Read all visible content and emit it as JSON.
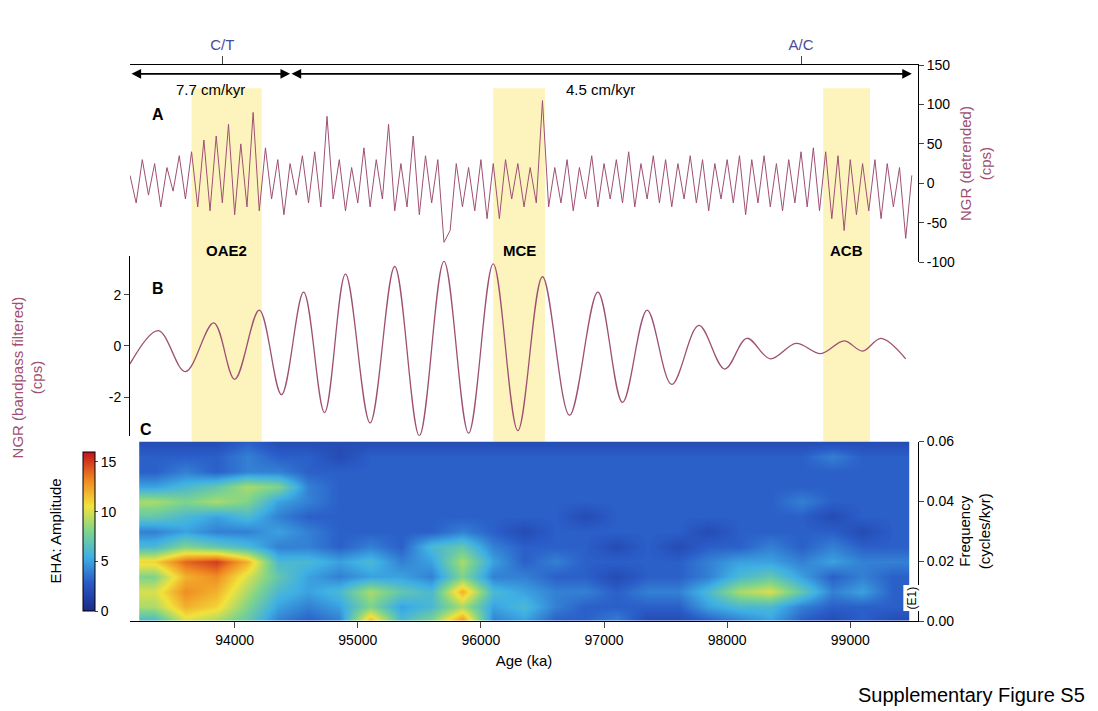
{
  "chart_data": [
    {
      "type": "line",
      "label": "A",
      "color": "#9e5073",
      "ylabel": "NGR (detrended) (cps)",
      "ylim": [
        -100,
        150
      ],
      "yticks": [
        -100,
        -50,
        0,
        50,
        100,
        150
      ],
      "x": [
        93150,
        93200,
        93250,
        93300,
        93350,
        93400,
        93450,
        93500,
        93550,
        93600,
        93650,
        93700,
        93750,
        93800,
        93850,
        93900,
        93950,
        94000,
        94050,
        94100,
        94150,
        94200,
        94250,
        94300,
        94350,
        94400,
        94450,
        94500,
        94550,
        94600,
        94650,
        94700,
        94750,
        94800,
        94850,
        94900,
        94950,
        95000,
        95050,
        95100,
        95150,
        95200,
        95250,
        95300,
        95350,
        95400,
        95450,
        95500,
        95550,
        95600,
        95650,
        95700,
        95750,
        95800,
        95850,
        95900,
        95950,
        96000,
        96050,
        96100,
        96150,
        96200,
        96250,
        96300,
        96350,
        96400,
        96450,
        96500,
        96550,
        96600,
        96650,
        96700,
        96750,
        96800,
        96850,
        96900,
        96950,
        97000,
        97050,
        97100,
        97150,
        97200,
        97250,
        97300,
        97350,
        97400,
        97450,
        97500,
        97550,
        97600,
        97650,
        97700,
        97750,
        97800,
        97850,
        97900,
        97950,
        98000,
        98050,
        98100,
        98150,
        98200,
        98250,
        98300,
        98350,
        98400,
        98450,
        98500,
        98550,
        98600,
        98650,
        98700,
        98750,
        98800,
        98850,
        98900,
        98950,
        99000,
        99050,
        99100,
        99150,
        99200,
        99250,
        99300,
        99350,
        99400,
        99450,
        99500
      ],
      "values": [
        10,
        -25,
        30,
        -15,
        25,
        -30,
        20,
        -10,
        35,
        -20,
        40,
        -30,
        55,
        -35,
        60,
        -25,
        75,
        -40,
        50,
        -30,
        90,
        -35,
        45,
        -20,
        30,
        -40,
        25,
        -15,
        35,
        -25,
        40,
        -30,
        85,
        -20,
        30,
        -35,
        20,
        -25,
        45,
        -30,
        30,
        -20,
        75,
        -35,
        25,
        -30,
        60,
        -40,
        35,
        -25,
        30,
        -75,
        -60,
        25,
        -30,
        20,
        -35,
        30,
        -45,
        25,
        -45,
        30,
        -20,
        25,
        -30,
        20,
        -25,
        105,
        -30,
        20,
        -25,
        30,
        -35,
        20,
        -20,
        35,
        -30,
        25,
        -20,
        30,
        -25,
        40,
        -30,
        25,
        -20,
        35,
        -25,
        30,
        -30,
        25,
        -20,
        35,
        -25,
        30,
        -35,
        25,
        -20,
        30,
        -25,
        35,
        -40,
        30,
        -25,
        35,
        -30,
        25,
        -35,
        30,
        -25,
        40,
        -30,
        45,
        -35,
        40,
        -45,
        35,
        -60,
        30,
        -40,
        25,
        -35,
        30,
        -45,
        25,
        -30,
        20,
        -70,
        10
      ]
    },
    {
      "type": "line",
      "label": "B",
      "color": "#9e5073",
      "line_style": "smooth",
      "ylabel": "NGR (bandpass filtered) (cps)",
      "ylim": [
        -3.5,
        3.5
      ],
      "yticks": [
        -2,
        0,
        2
      ],
      "x": [
        93150,
        93380,
        93600,
        93830,
        94000,
        94200,
        94380,
        94560,
        94730,
        94900,
        95100,
        95300,
        95500,
        95700,
        95900,
        96100,
        96300,
        96500,
        96720,
        96950,
        97150,
        97350,
        97550,
        97770,
        97980,
        98160,
        98350,
        98560,
        98760,
        98950,
        99100,
        99250,
        99450
      ],
      "values": [
        -0.7,
        0.6,
        -1.0,
        0.9,
        -1.3,
        1.4,
        -1.9,
        2.1,
        -2.6,
        2.8,
        -3.0,
        3.1,
        -3.5,
        3.3,
        -3.4,
        3.2,
        -3.3,
        2.7,
        -2.7,
        2.1,
        -2.2,
        1.4,
        -1.5,
        0.8,
        -0.9,
        0.3,
        -0.5,
        0.1,
        -0.3,
        0.2,
        -0.2,
        0.3,
        -0.5
      ]
    },
    {
      "type": "heatmap",
      "label": "C",
      "ylabel": "Frequency (cycles/kyr)",
      "ylim": [
        0,
        0.06
      ],
      "yticks": [
        {
          "value": 0,
          "label": "0.00"
        },
        {
          "value": 0.02,
          "label": "0.02"
        },
        {
          "value": 0.04,
          "label": "0.04"
        },
        {
          "value": 0.06,
          "label": "0.06"
        }
      ],
      "note": "(E1)",
      "colorbar": {
        "title": "EHA: Amplitude",
        "range": [
          0,
          16
        ],
        "ticks": [
          0,
          5,
          10,
          15
        ]
      },
      "x": [
        93350,
        93600,
        93850,
        94100,
        94350,
        94600,
        94850,
        95100,
        95350,
        95600,
        95850,
        96100,
        96350,
        96600,
        96850,
        97100,
        97350,
        97600,
        97850,
        98100,
        98350,
        98600,
        98850,
        99100,
        99350
      ],
      "y": [
        0,
        0.005,
        0.01,
        0.015,
        0.02,
        0.025,
        0.03,
        0.035,
        0.04,
        0.045,
        0.05,
        0.055,
        0.06
      ],
      "z": [
        [
          6,
          10,
          9,
          7,
          4,
          3,
          4,
          12,
          6,
          8,
          13,
          4,
          5,
          3,
          3,
          4,
          2,
          2,
          3,
          4,
          5,
          3,
          2,
          3,
          2
        ],
        [
          9,
          12,
          11,
          8,
          5,
          4,
          5,
          8,
          5,
          6,
          9,
          5,
          6,
          4,
          3,
          3,
          3,
          3,
          5,
          6,
          6,
          4,
          3,
          3,
          3
        ],
        [
          10,
          13,
          12,
          9,
          6,
          5,
          6,
          9,
          7,
          6,
          12,
          6,
          5,
          4,
          4,
          3,
          4,
          4,
          6,
          9,
          10,
          7,
          4,
          5,
          3
        ],
        [
          8,
          12,
          13,
          10,
          7,
          5,
          4,
          5,
          5,
          4,
          8,
          4,
          4,
          3,
          3,
          2,
          3,
          3,
          4,
          6,
          7,
          5,
          3,
          4,
          3
        ],
        [
          11,
          14,
          15,
          12,
          6,
          6,
          5,
          6,
          4,
          5,
          9,
          5,
          3,
          4,
          3,
          3,
          3,
          3,
          4,
          5,
          5,
          4,
          5,
          4,
          4
        ],
        [
          6,
          8,
          7,
          6,
          4,
          4,
          3,
          4,
          3,
          6,
          7,
          4,
          3,
          3,
          3,
          2,
          3,
          2,
          3,
          3,
          4,
          3,
          4,
          3,
          3
        ],
        [
          4,
          5,
          4,
          4,
          5,
          4,
          3,
          3,
          3,
          3,
          4,
          3,
          2,
          3,
          3,
          3,
          3,
          3,
          2,
          3,
          3,
          3,
          3,
          2,
          3
        ],
        [
          7,
          6,
          5,
          6,
          4,
          3,
          3,
          3,
          3,
          3,
          3,
          3,
          3,
          3,
          2,
          3,
          3,
          3,
          3,
          3,
          3,
          3,
          2,
          3,
          3
        ],
        [
          9,
          8,
          9,
          8,
          5,
          4,
          3,
          3,
          3,
          3,
          3,
          3,
          3,
          3,
          3,
          3,
          3,
          3,
          3,
          3,
          3,
          4,
          3,
          3,
          3
        ],
        [
          5,
          6,
          7,
          9,
          8,
          4,
          3,
          3,
          3,
          3,
          3,
          3,
          3,
          3,
          3,
          3,
          3,
          3,
          3,
          3,
          3,
          3,
          3,
          3,
          3
        ],
        [
          3,
          4,
          3,
          4,
          4,
          3,
          3,
          3,
          3,
          3,
          3,
          3,
          3,
          3,
          3,
          3,
          3,
          3,
          3,
          3,
          3,
          3,
          3,
          3,
          3
        ],
        [
          3,
          3,
          3,
          4,
          3,
          3,
          2,
          3,
          3,
          3,
          3,
          3,
          3,
          3,
          3,
          3,
          3,
          3,
          3,
          3,
          3,
          3,
          4,
          3,
          3
        ],
        [
          2,
          2,
          2,
          3,
          2,
          2,
          2,
          2,
          2,
          2,
          2,
          2,
          2,
          2,
          2,
          2,
          2,
          2,
          2,
          2,
          2,
          2,
          2,
          2,
          2
        ]
      ]
    }
  ],
  "figure": {
    "xlabel": "Age (ka)",
    "xlim": [
      93150,
      99550
    ],
    "xticks": [
      94000,
      95000,
      96000,
      97000,
      98000,
      99000
    ],
    "top_ticks": [
      {
        "value": 93900,
        "label": "C/T"
      },
      {
        "value": 98600,
        "label": "A/C"
      }
    ],
    "sedimentation_rates": [
      {
        "label": "7.7 cm/kyr",
        "from": 93150,
        "to": 94450
      },
      {
        "label": "4.5 cm/kyr",
        "from": 94450,
        "to": 99500
      }
    ],
    "events": [
      {
        "label": "OAE2",
        "from": 93650,
        "to": 94220
      },
      {
        "label": "MCE",
        "from": 96100,
        "to": 96520
      },
      {
        "label": "ACB",
        "from": 98780,
        "to": 99160
      }
    ],
    "footer": "Supplementary Figure S5"
  }
}
